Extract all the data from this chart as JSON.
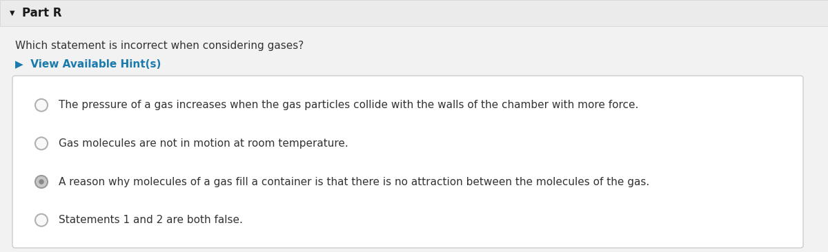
{
  "title": "Part R",
  "question": "Which statement is incorrect when considering gases?",
  "hint_text": "▶  View Available Hint(s)",
  "hint_color": "#1a7aad",
  "options": [
    "The pressure of a gas increases when the gas particles collide with the walls of the chamber with more force.",
    "Gas molecules are not in motion at room temperature.",
    "A reason why molecules of a gas fill a container is that there is no attraction between the molecules of the gas.",
    "Statements 1 and 2 are both false."
  ],
  "selected_index": 2,
  "bg_color": "#f2f2f2",
  "box_bg_color": "#ffffff",
  "box_border_color": "#cccccc",
  "title_bg_color": "#ebebeb",
  "title_color": "#1a1a1a",
  "text_color": "#333333",
  "radio_empty_edge": "#b0b0b0",
  "radio_empty_fill": "#f8f8f8",
  "radio_selected_edge": "#999999",
  "radio_selected_fill": "#c8c8c8",
  "radio_selected_dot": "#888888",
  "title_fontsize": 12,
  "question_fontsize": 11,
  "hint_fontsize": 11,
  "option_fontsize": 11,
  "figw": 12.0,
  "figh": 3.66
}
